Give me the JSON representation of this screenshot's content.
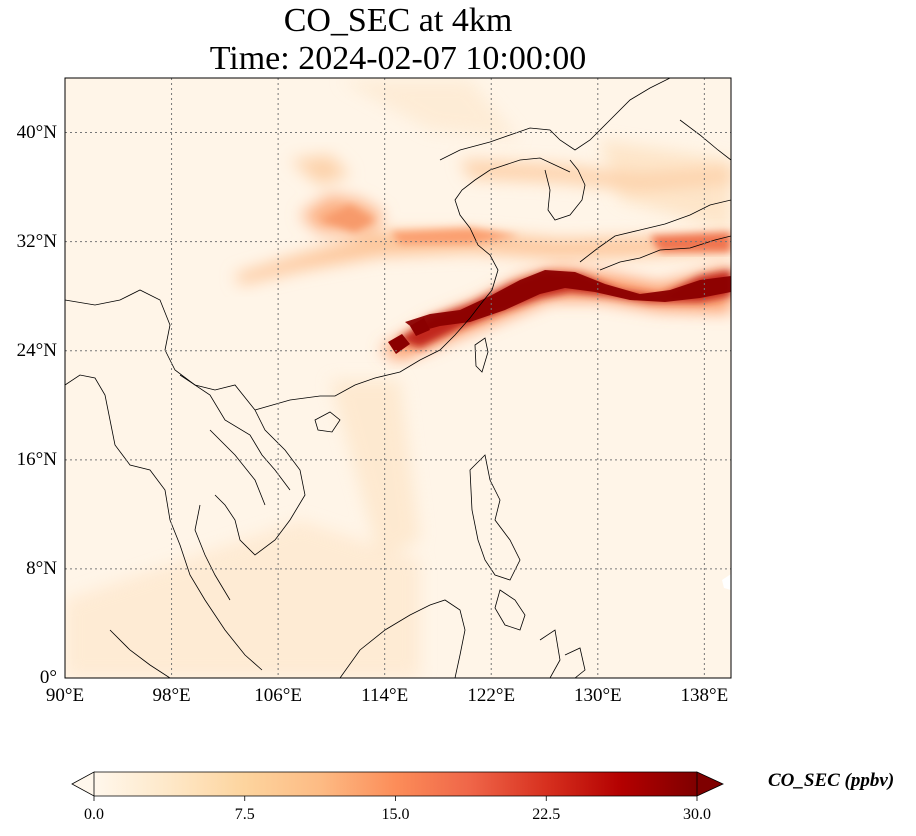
{
  "title": {
    "line1": "CO_SEC at 4km",
    "line2": "Time: 2024-02-07 10:00:00"
  },
  "map": {
    "extent": {
      "lon": [
        90,
        140
      ],
      "lat": [
        0,
        44
      ]
    },
    "lat_ticks": [
      {
        "value": 0,
        "label": "0°"
      },
      {
        "value": 8,
        "label": "8°N"
      },
      {
        "value": 16,
        "label": "16°N"
      },
      {
        "value": 24,
        "label": "24°N"
      },
      {
        "value": 32,
        "label": "32°N"
      },
      {
        "value": 40,
        "label": "40°N"
      }
    ],
    "lon_ticks": [
      {
        "value": 90,
        "label": "90°E"
      },
      {
        "value": 98,
        "label": "98°E"
      },
      {
        "value": 106,
        "label": "106°E"
      },
      {
        "value": 114,
        "label": "114°E"
      },
      {
        "value": 122,
        "label": "122°E"
      },
      {
        "value": 130,
        "label": "130°E"
      },
      {
        "value": 138,
        "label": "138°E"
      }
    ],
    "gridlines": true
  },
  "colorbar": {
    "label": "CO_SEC (ppbv)",
    "min": 0.0,
    "max": 30.0,
    "ticks": [
      "0.0",
      "7.5",
      "15.0",
      "22.5",
      "30.0"
    ],
    "extend": "both",
    "colormap": "OrRd",
    "colors": [
      "#fff7ec",
      "#fee8c8",
      "#fdd49e",
      "#fdbb84",
      "#fc8d59",
      "#ef6548",
      "#d7301f",
      "#b30000",
      "#7f0000"
    ]
  }
}
